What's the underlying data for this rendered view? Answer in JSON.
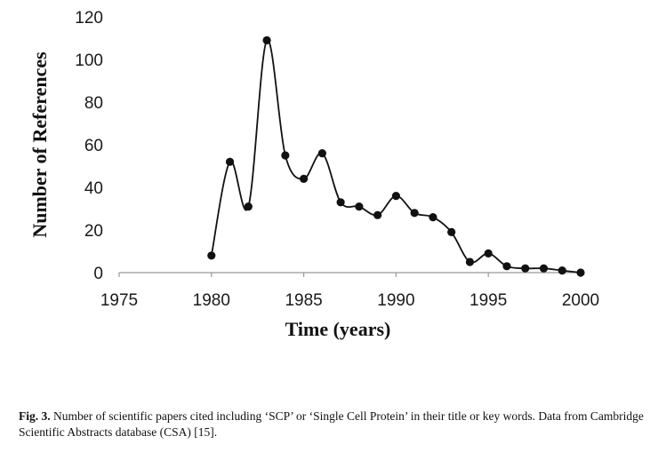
{
  "chart_data": {
    "type": "line",
    "title": "",
    "xlabel": "Time (years)",
    "ylabel": "Number of References",
    "xlim": [
      1975,
      2000
    ],
    "ylim": [
      0,
      120
    ],
    "xticks": [
      "1975",
      "1980",
      "1985",
      "1990",
      "1995",
      "2000"
    ],
    "yticks": [
      "0",
      "20",
      "40",
      "60",
      "80",
      "100",
      "120"
    ],
    "grid": false,
    "legend": "none",
    "series": [
      {
        "x": [
          1980,
          1981,
          1982,
          1983,
          1984,
          1985,
          1986,
          1987,
          1988,
          1989,
          1990,
          1991,
          1992,
          1993,
          1994,
          1995,
          1996,
          1997,
          1998,
          1999,
          2000
        ],
        "y": [
          8,
          52,
          31,
          109,
          55,
          44,
          56,
          33,
          31,
          27,
          36,
          28,
          26,
          19,
          5,
          9,
          3,
          2,
          2,
          1,
          0
        ]
      }
    ],
    "line_color": "#111111"
  },
  "caption": {
    "label": "Fig. 3.",
    "text": "Number of scientific papers cited including ‘SCP’ or ‘Single Cell Protein’ in their title or key words. Data from Cambridge Scientific Abstracts database (CSA) [15]."
  }
}
